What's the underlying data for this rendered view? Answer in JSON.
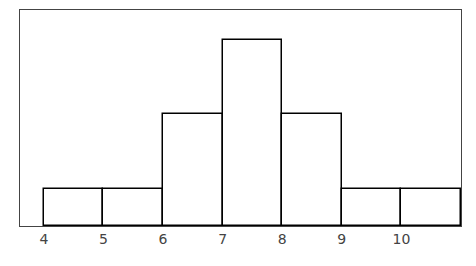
{
  "chart_data": {
    "type": "histogram",
    "bins": [
      4,
      5,
      6,
      7,
      8,
      9,
      10,
      11
    ],
    "values": [
      1,
      1,
      3,
      5,
      3,
      1,
      1
    ],
    "color": "#ffffff",
    "xlim": [
      3.6,
      11.0
    ],
    "ylim": [
      0,
      5.8
    ],
    "xticks": [
      4,
      5,
      6,
      7,
      8,
      9,
      10
    ],
    "tick_labels": "x",
    "grid": false
  }
}
